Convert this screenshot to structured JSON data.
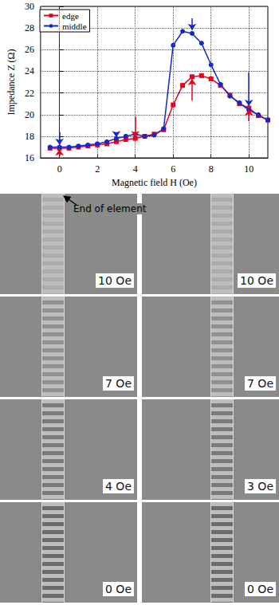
{
  "chart_data": {
    "type": "line",
    "x_label": "Magnetic field H (Oe)",
    "y_label": "Impedance Z (Ω)",
    "xlim": [
      -1,
      11
    ],
    "xticks": [
      0,
      2,
      4,
      6,
      8,
      10
    ],
    "ylim": [
      16,
      30
    ],
    "yticks": [
      16,
      18,
      20,
      22,
      24,
      26,
      28,
      30
    ],
    "grid": true,
    "legend": "top-left",
    "x": [
      -0.5,
      0,
      0.5,
      1,
      1.5,
      2,
      2.5,
      3,
      3.5,
      4,
      4.5,
      5,
      5.5,
      6,
      6.5,
      7,
      7.5,
      8,
      8.5,
      9,
      9.5,
      10,
      10.5,
      11
    ],
    "series": [
      {
        "name": "edge",
        "color": "#e8001c",
        "marker": "square",
        "values": [
          16.9,
          16.9,
          16.9,
          17.0,
          17.1,
          17.2,
          17.3,
          17.5,
          17.7,
          17.8,
          18.0,
          18.2,
          18.6,
          20.9,
          22.7,
          23.5,
          23.6,
          23.3,
          22.7,
          21.8,
          21.0,
          20.6,
          19.9,
          19.5
        ]
      },
      {
        "name": "middle",
        "color": "#1428c8",
        "marker": "circle",
        "values": [
          17.0,
          17.0,
          17.0,
          17.1,
          17.2,
          17.3,
          17.5,
          17.8,
          18.0,
          18.2,
          18.0,
          18.1,
          18.7,
          26.4,
          27.7,
          27.5,
          26.6,
          24.6,
          22.8,
          21.7,
          21.1,
          20.4,
          20.0,
          19.5
        ]
      }
    ],
    "arrows": [
      {
        "x": 0,
        "from": 18.4,
        "to": 17.2,
        "color": "#1428c8"
      },
      {
        "x": 0,
        "from": 16.2,
        "to": 16.8,
        "color": "#e8001c"
      },
      {
        "x": 3,
        "from": 18.4,
        "to": 17.9,
        "color": "#1428c8"
      },
      {
        "x": 4,
        "from": 19.8,
        "to": 17.9,
        "color": "#e8001c"
      },
      {
        "x": 7,
        "from": 28.9,
        "to": 27.8,
        "color": "#1428c8"
      },
      {
        "x": 7,
        "from": 21.3,
        "to": 23.3,
        "color": "#e8001c"
      },
      {
        "x": 10,
        "from": 23.9,
        "to": 20.8,
        "color": "#1428c8"
      },
      {
        "x": 10,
        "from": 19.4,
        "to": 20.5,
        "color": "#e8001c"
      }
    ]
  },
  "images": {
    "annotation": "End of element",
    "left": [
      "10 Oe",
      "7 Oe",
      "4 Oe",
      "0 Oe"
    ],
    "right": [
      "10 Oe",
      "7 Oe",
      "3 Oe",
      "0 Oe"
    ]
  }
}
